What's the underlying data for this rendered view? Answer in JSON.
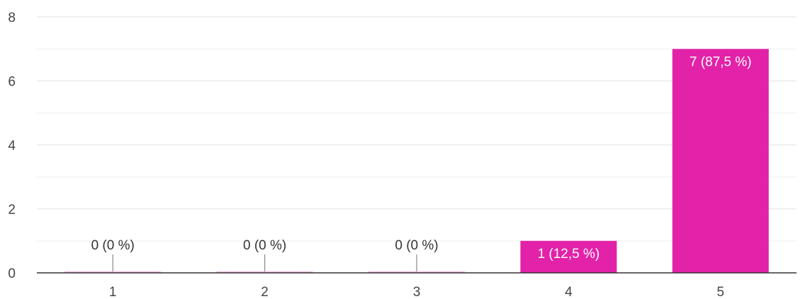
{
  "chart_data": {
    "type": "bar",
    "title": "",
    "xlabel": "",
    "ylabel": "",
    "categories": [
      "1",
      "2",
      "3",
      "4",
      "5"
    ],
    "values": [
      0,
      0,
      0,
      1,
      7
    ],
    "data_labels": [
      "0 (0 %)",
      "0 (0 %)",
      "0 (0 %)",
      "1 (12,5 %)",
      "7 (87,5 %)"
    ],
    "ylim": [
      0,
      8
    ],
    "yticks": [
      "0",
      "2",
      "4",
      "6",
      "8"
    ],
    "grid": true,
    "bar_color": "#e222a8",
    "legend": "none"
  }
}
